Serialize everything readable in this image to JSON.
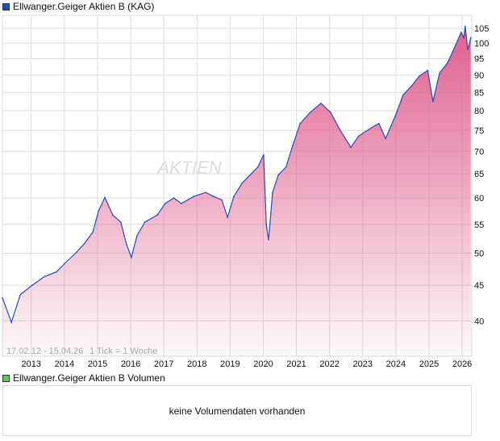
{
  "chart_data": {
    "type": "area",
    "title": "Ellwanger.Geiger Aktien B (KAG)",
    "series_color": "#1f4fbf",
    "fill_top": "#e06090",
    "y_scale": "log",
    "ylim": [
      35.6,
      109.6
    ],
    "xlim": [
      2012.13,
      2026.29
    ],
    "y_ticks": [
      105,
      100,
      95,
      90,
      85,
      80,
      75,
      70,
      65,
      60,
      55,
      50,
      45,
      40
    ],
    "x_ticks": [
      2013,
      2014,
      2015,
      2016,
      2017,
      2018,
      2019,
      2020,
      2021,
      2022,
      2023,
      2024,
      2025,
      2026
    ],
    "grid": true,
    "date_range": "17.02.12 - 15.04.26",
    "tick_info": "1 Tick = 1 Woche",
    "watermark": "AKTIEN",
    "x": [
      2012.13,
      2012.4,
      2012.67,
      2013.03,
      2013.4,
      2013.76,
      2014.0,
      2014.37,
      2014.6,
      2014.86,
      2015.03,
      2015.22,
      2015.46,
      2015.7,
      2015.87,
      2016.02,
      2016.19,
      2016.43,
      2016.8,
      2017.04,
      2017.3,
      2017.53,
      2017.9,
      2018.26,
      2018.5,
      2018.75,
      2018.92,
      2019.11,
      2019.36,
      2019.6,
      2019.84,
      2020.01,
      2020.09,
      2020.16,
      2020.28,
      2020.45,
      2020.69,
      2020.87,
      2021.11,
      2021.42,
      2021.74,
      2022.03,
      2022.28,
      2022.64,
      2022.88,
      2023.25,
      2023.49,
      2023.69,
      2023.98,
      2024.22,
      2024.47,
      2024.71,
      2024.96,
      2025.12,
      2025.32,
      2025.56,
      2025.8,
      2025.97,
      2026.05,
      2026.09,
      2026.17,
      2026.26
    ],
    "values": [
      43.2,
      39.8,
      43.6,
      45.0,
      46.3,
      47.0,
      48.3,
      50.2,
      51.6,
      53.6,
      57.5,
      60.1,
      56.7,
      55.4,
      51.6,
      49.3,
      53.0,
      55.4,
      56.7,
      58.9,
      60.0,
      58.9,
      60.3,
      61.1,
      60.3,
      59.6,
      56.3,
      60.3,
      63.0,
      64.7,
      66.5,
      69.2,
      55.0,
      52.3,
      61.1,
      64.7,
      66.5,
      70.9,
      76.7,
      79.6,
      82.0,
      79.6,
      75.6,
      70.9,
      73.6,
      75.6,
      76.7,
      73.0,
      78.6,
      84.3,
      86.8,
      89.7,
      91.4,
      82.5,
      90.6,
      93.7,
      99.3,
      103.6,
      101.8,
      105.8,
      97.9,
      101.8
    ]
  },
  "volume": {
    "title": "Ellwanger.Geiger Aktien B Volumen",
    "color": "#5cc85c",
    "message": "keine Volumendaten vorhanden"
  }
}
